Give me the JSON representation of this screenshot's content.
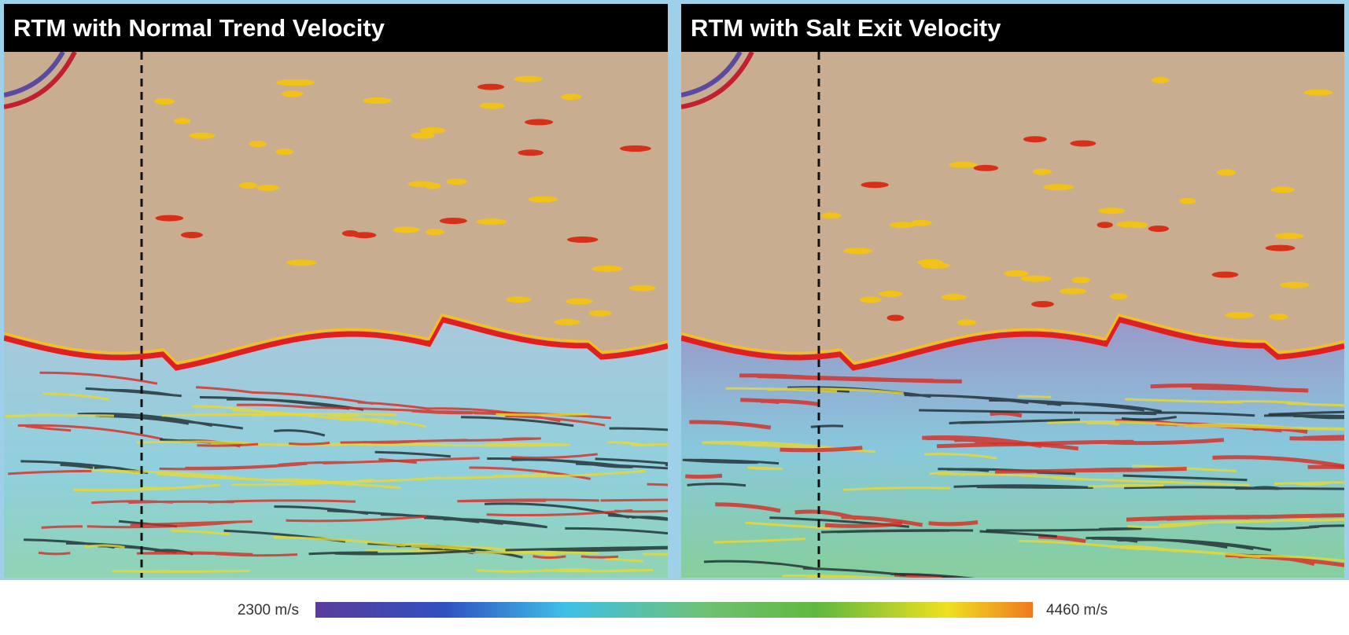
{
  "panels": [
    {
      "title": "RTM with Normal Trend Velocity"
    },
    {
      "title": "RTM with Salt Exit Velocity"
    }
  ],
  "colorbar": {
    "min_label": "2300 m/s",
    "max_label": "4460 m/s"
  }
}
